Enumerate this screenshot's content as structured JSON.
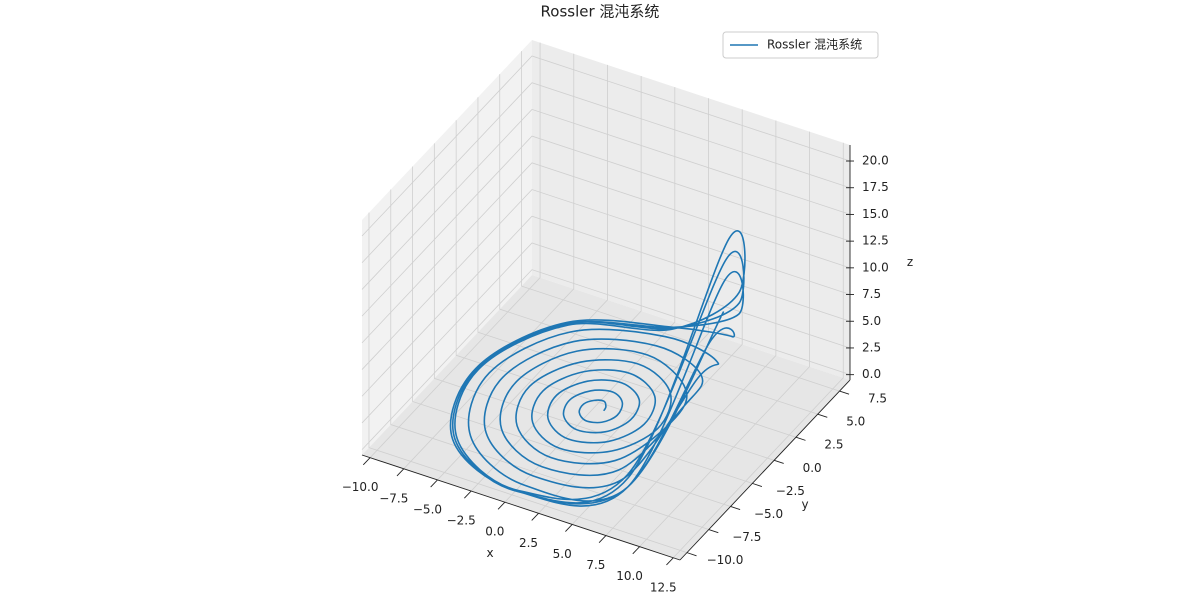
{
  "chart_data": {
    "type": "line3d",
    "title": "Rossler 混沌系统",
    "xlabel": "x",
    "ylabel": "y",
    "zlabel": "z",
    "xlim": [
      -10.6,
      13.0
    ],
    "ylim": [
      -10.8,
      8.7
    ],
    "zlim": [
      -0.5,
      21.5
    ],
    "xticks": [
      {
        "value": -10,
        "label": "−10.0"
      },
      {
        "value": -7.5,
        "label": "−7.5"
      },
      {
        "value": -5,
        "label": "−5.0"
      },
      {
        "value": -2.5,
        "label": "−2.5"
      },
      {
        "value": 0,
        "label": "0.0"
      },
      2.5,
      {
        "value": 5,
        "label": "5.0"
      },
      7.5,
      {
        "value": 10,
        "label": "10.0"
      },
      12.5
    ],
    "yticks": [
      {
        "value": -10,
        "label": "−10.0"
      },
      {
        "value": -7.5,
        "label": "−7.5"
      },
      {
        "value": -5,
        "label": "−5.0"
      },
      {
        "value": -2.5,
        "label": "−2.5"
      },
      {
        "value": 0,
        "label": "0.0"
      },
      2.5,
      {
        "value": 5,
        "label": "5.0"
      },
      7.5
    ],
    "zticks": [
      {
        "value": 0,
        "label": "0.0"
      },
      2.5,
      {
        "value": 5,
        "label": "5.0"
      },
      7.5,
      {
        "value": 10,
        "label": "10.0"
      },
      12.5,
      {
        "value": 15,
        "label": "15.0"
      },
      17.5,
      {
        "value": 20,
        "label": "20.0"
      }
    ],
    "grid": true,
    "series": [
      {
        "name": "Rossler 混沌系统",
        "color": "#1f77b4",
        "x": [
          1.0,
          0.9,
          0.5,
          -0.1,
          -0.5,
          -0.3,
          0.5,
          1.5,
          2.0,
          1.6,
          0.5,
          -0.8,
          -1.5,
          -1.0,
          0.5,
          2.2,
          3.0,
          2.4,
          0.5,
          -1.5,
          -2.5,
          -1.7,
          0.5,
          2.9,
          4.0,
          3.1,
          0.5,
          -2.2,
          -3.5,
          -2.4,
          0.5,
          3.6,
          5.0,
          3.8,
          0.5,
          -2.9,
          -4.5,
          -3.1,
          0.5,
          4.3,
          6.0,
          4.5,
          0.5,
          -3.7,
          -5.5,
          -3.8,
          0.5,
          5.0,
          7.0,
          5.2,
          0.5,
          -4.4,
          -6.5,
          -4.5,
          0.5,
          5.7,
          8.0,
          5.9,
          0.5,
          -5.1,
          -7.5,
          -5.2,
          0.5,
          6.4,
          9.0,
          6.6,
          0.5,
          -5.8,
          -8.5,
          -6.0,
          0.5,
          7.0,
          10.0,
          6.9,
          0.5,
          -5.7,
          -8.4,
          -5.9,
          0.5,
          7.1,
          10.3,
          6.9,
          0.5,
          -5.6,
          -8.3,
          -5.8,
          0.5,
          6.9,
          10.1,
          6.9,
          0.5,
          -5.7,
          -8.4,
          -5.9,
          0.5,
          7.0,
          9.9
        ],
        "y": [
          -1.0,
          -0.6,
          -0.2,
          -0.4,
          -1.0,
          -1.8,
          -2.3,
          -2.0,
          -1.0,
          0.2,
          0.8,
          0.3,
          -1.0,
          -2.5,
          -3.3,
          -2.7,
          -1.0,
          0.9,
          1.8,
          1.0,
          -1.0,
          -3.2,
          -4.3,
          -3.4,
          -1.0,
          1.6,
          2.8,
          1.7,
          -1.0,
          -3.9,
          -5.3,
          -4.1,
          -1.0,
          2.3,
          3.8,
          2.4,
          -1.0,
          -4.6,
          -6.3,
          -4.8,
          -1.0,
          3.0,
          4.8,
          3.2,
          -1.0,
          -5.3,
          -7.3,
          -5.5,
          -1.0,
          3.7,
          5.8,
          3.9,
          -1.0,
          -6.0,
          -8.3,
          -6.2,
          -1.0,
          4.4,
          6.8,
          4.6,
          -1.0,
          -6.7,
          -9.3,
          -6.9,
          -1.0,
          5.1,
          7.8,
          5.3,
          -1.0,
          -7.5,
          -10.0,
          -7.5,
          -1.0,
          5.4,
          7.8,
          5.2,
          -1.0,
          -7.4,
          -10.0,
          -7.6,
          -1.0,
          5.4,
          7.6,
          5.1,
          -1.0,
          -7.3,
          -9.9,
          -7.4,
          -1.0,
          5.4,
          7.7,
          5.2,
          -1.0,
          -7.4,
          -10.0,
          -7.5,
          -1.0
        ],
        "z": [
          0,
          0,
          0,
          0,
          0,
          0,
          0,
          0,
          0,
          0,
          0,
          0,
          0,
          0,
          0,
          0,
          0,
          0,
          0,
          0,
          0,
          0,
          0,
          0,
          0,
          0,
          0,
          0,
          0,
          0,
          0,
          0,
          0,
          0,
          0,
          0,
          0,
          0,
          0,
          0,
          1,
          0,
          0,
          0,
          0,
          0,
          0,
          0,
          3,
          1,
          0,
          0,
          0,
          0,
          0,
          0,
          6,
          2,
          0,
          0,
          0,
          0,
          0,
          0,
          10,
          4,
          0,
          0,
          0,
          0,
          0,
          1,
          16,
          6,
          0,
          0,
          0,
          0,
          0,
          2,
          20,
          8,
          0,
          0,
          0,
          0,
          0,
          2,
          18,
          7,
          0,
          0,
          0,
          0,
          0,
          1,
          13
        ]
      }
    ]
  }
}
